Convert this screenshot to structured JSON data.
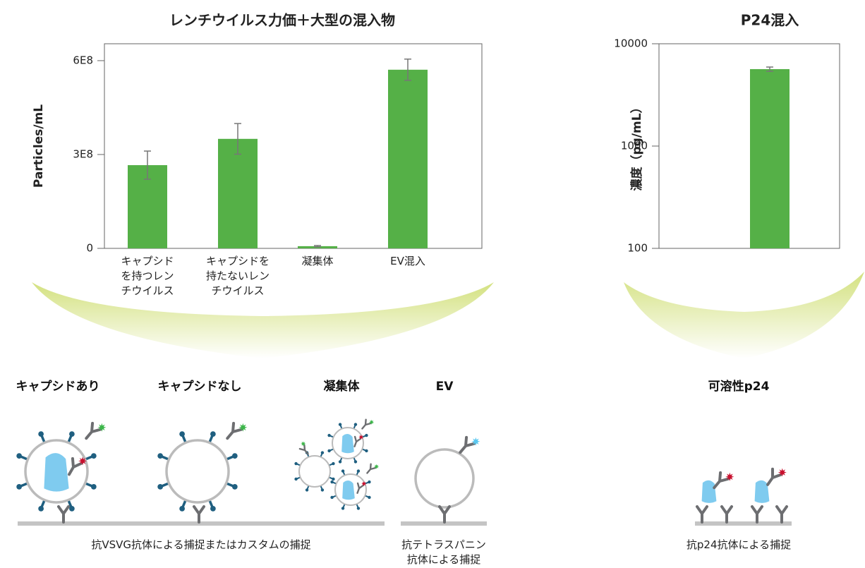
{
  "chart_data": [
    {
      "type": "bar",
      "title": "レンチウイルス力価＋大型の混入物",
      "y_label": "Particles/mL",
      "categories": [
        "キャプシド\nを持つレン\nチウイルス",
        "キャプシドを\n持たないレン\nチウイルス",
        "凝集体",
        "EV混入"
      ],
      "values": [
        266000000,
        350000000,
        7000000,
        571000000
      ],
      "errors": [
        45000000,
        49000000,
        2000000,
        34000000
      ],
      "color": "#55b047",
      "error_color": "#777777",
      "ylim": [
        0,
        654000000
      ],
      "yticks": [
        0,
        {
          "value": 300000000,
          "label": "3E8"
        },
        {
          "value": 600000000,
          "label": "6E8"
        }
      ],
      "log_y": false
    },
    {
      "type": "bar",
      "title": "P24混入",
      "y_label": "濃度（pg/mL）",
      "categories": [
        null
      ],
      "values": [
        5650
      ],
      "errors": [
        270
      ],
      "color": "#55b047",
      "error_color": "#777777",
      "ylim": [
        100,
        10000
      ],
      "yticks": [
        100,
        1000,
        10000
      ],
      "log_y": true
    }
  ],
  "diagram": {
    "labels": [
      "キャプシドあり",
      "キャプシドなし",
      "凝集体",
      "EV",
      "可溶性p24"
    ],
    "captions": [
      "抗VSVG抗体による捕捉またはカスタムの捕捉",
      "抗テトラスパニン\n抗体による捕捉",
      "抗p24抗体による捕捉"
    ]
  }
}
